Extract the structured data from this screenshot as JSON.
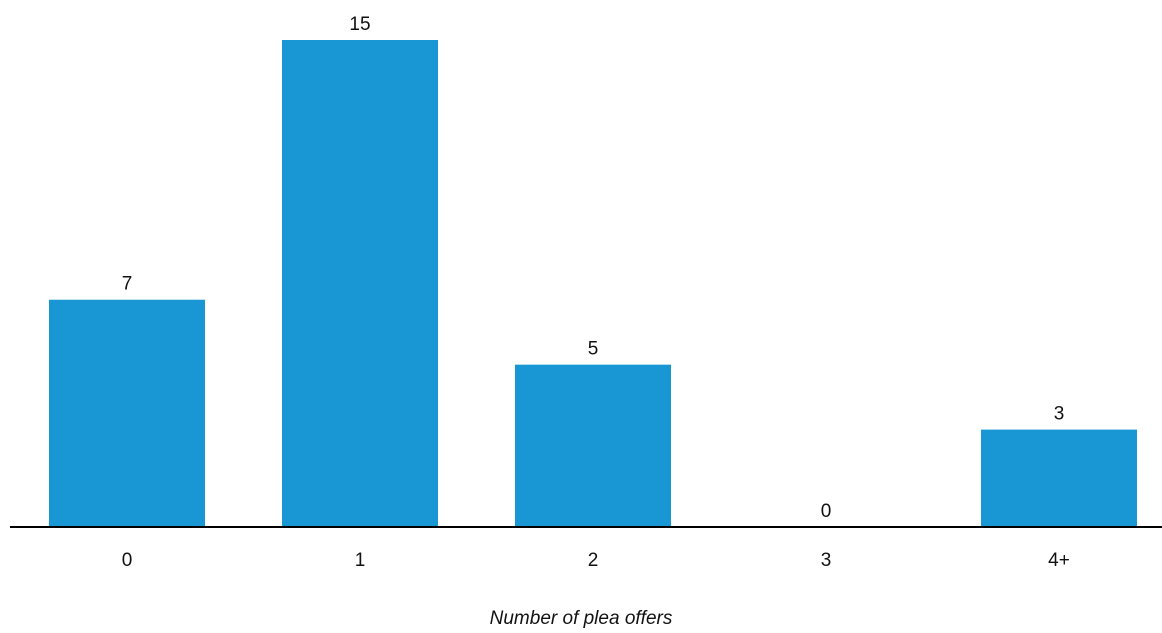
{
  "chart_data": {
    "type": "bar",
    "categories": [
      "0",
      "1",
      "2",
      "3",
      "4+"
    ],
    "values": [
      7,
      15,
      5,
      0,
      3
    ],
    "title": "",
    "xlabel": "Number of plea offers",
    "ylabel": "",
    "ylim": [
      0,
      15
    ],
    "grid": false,
    "bar_color": "#1997d4",
    "axis_color": "#000000"
  }
}
